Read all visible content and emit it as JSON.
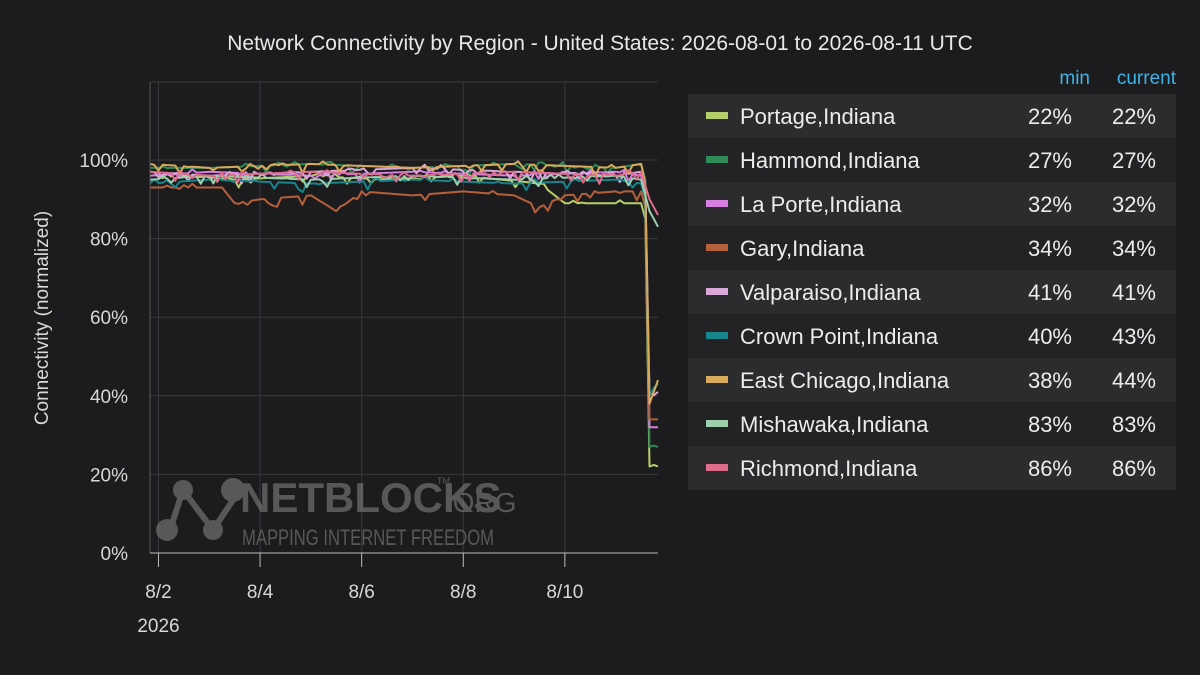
{
  "title": "Network Connectivity by Region - United States: 2026-08-01 to 2026-08-11 UTC",
  "legend": {
    "header_min": "min",
    "header_current": "current",
    "rows": [
      {
        "name": "Portage,Indiana",
        "min": "22%",
        "current": "22%",
        "color": "#b5cf6b"
      },
      {
        "name": "Hammond,Indiana",
        "min": "27%",
        "current": "27%",
        "color": "#2e8b57"
      },
      {
        "name": "La Porte,Indiana",
        "min": "32%",
        "current": "32%",
        "color": "#d67fe0"
      },
      {
        "name": "Gary,Indiana",
        "min": "34%",
        "current": "34%",
        "color": "#b5603a"
      },
      {
        "name": "Valparaiso,Indiana",
        "min": "41%",
        "current": "41%",
        "color": "#d9a7d9"
      },
      {
        "name": "Crown Point,Indiana",
        "min": "40%",
        "current": "43%",
        "color": "#16868c"
      },
      {
        "name": "East Chicago,Indiana",
        "min": "38%",
        "current": "44%",
        "color": "#d9aa5a"
      },
      {
        "name": "Mishawaka,Indiana",
        "min": "83%",
        "current": "83%",
        "color": "#9ecfae"
      },
      {
        "name": "Richmond,Indiana",
        "min": "86%",
        "current": "86%",
        "color": "#e06c8c"
      }
    ]
  },
  "watermark": {
    "brand": "NETBLOCKS",
    "suffix": ".ORG",
    "tm": "TM",
    "tagline": "MAPPING INTERNET FREEDOM"
  },
  "chart_data": {
    "type": "line",
    "title": "Network Connectivity by Region - United States: 2026-08-01 to 2026-08-11 UTC",
    "xlabel": "",
    "ylabel": "Connectivity (normalized)",
    "xlim": [
      "2026-08-01T20:00",
      "2026-08-11T20:00"
    ],
    "ylim": [
      0,
      100
    ],
    "x_ticks": [
      "8/2",
      "8/4",
      "8/6",
      "8/8",
      "8/10"
    ],
    "x_tick_sub": "2026",
    "y_ticks": [
      "0%",
      "20%",
      "40%",
      "60%",
      "80%",
      "100%"
    ],
    "y_tick_values": [
      0,
      20,
      40,
      60,
      80,
      100
    ],
    "grid": true,
    "legend_position": "right",
    "series": [
      {
        "name": "Portage,Indiana",
        "color": "#b5cf6b",
        "x": [
          "2026-08-01T20:00",
          "2026-08-02T12:00",
          "2026-08-03T12:00",
          "2026-08-05T00:00",
          "2026-08-06T12:00",
          "2026-08-08T00:00",
          "2026-08-09T12:00",
          "2026-08-10T00:00",
          "2026-08-10T12:00",
          "2026-08-11T06:00",
          "2026-08-11T12:00",
          "2026-08-11T14:00",
          "2026-08-11T16:00",
          "2026-08-11T20:00"
        ],
        "values": [
          97,
          96,
          95,
          96,
          95,
          96,
          94,
          89,
          89,
          89,
          89,
          85,
          22,
          22
        ]
      },
      {
        "name": "Hammond,Indiana",
        "color": "#2e8b57",
        "x": [
          "2026-08-01T20:00",
          "2026-08-03T00:00",
          "2026-08-05T00:00",
          "2026-08-07T00:00",
          "2026-08-09T00:00",
          "2026-08-11T00:00",
          "2026-08-11T12:00",
          "2026-08-11T14:00",
          "2026-08-11T16:00",
          "2026-08-11T20:00"
        ],
        "values": [
          98,
          98,
          99,
          98,
          99,
          98,
          99,
          95,
          27,
          27
        ]
      },
      {
        "name": "La Porte,Indiana",
        "color": "#d67fe0",
        "x": [
          "2026-08-01T20:00",
          "2026-08-03T00:00",
          "2026-08-05T00:00",
          "2026-08-07T00:00",
          "2026-08-09T00:00",
          "2026-08-11T00:00",
          "2026-08-11T12:00",
          "2026-08-11T14:00",
          "2026-08-11T16:00",
          "2026-08-11T20:00"
        ],
        "values": [
          96,
          97,
          96,
          97,
          96,
          97,
          96,
          92,
          32,
          32
        ]
      },
      {
        "name": "Gary,Indiana",
        "color": "#b5603a",
        "x": [
          "2026-08-01T20:00",
          "2026-08-03T06:00",
          "2026-08-03T12:00",
          "2026-08-04T00:00",
          "2026-08-05T00:00",
          "2026-08-05T12:00",
          "2026-08-06T00:00",
          "2026-08-07T00:00",
          "2026-08-08T00:00",
          "2026-08-09T00:00",
          "2026-08-09T12:00",
          "2026-08-10T00:00",
          "2026-08-11T00:00",
          "2026-08-11T12:00",
          "2026-08-11T14:00",
          "2026-08-11T16:00",
          "2026-08-11T20:00"
        ],
        "values": [
          93,
          93,
          89,
          90,
          91,
          87,
          92,
          91,
          92,
          91,
          88,
          91,
          92,
          92,
          88,
          34,
          34
        ]
      },
      {
        "name": "Valparaiso,Indiana",
        "color": "#d9a7d9",
        "x": [
          "2026-08-01T20:00",
          "2026-08-03T00:00",
          "2026-08-05T00:00",
          "2026-08-07T00:00",
          "2026-08-09T00:00",
          "2026-08-11T00:00",
          "2026-08-11T12:00",
          "2026-08-11T14:00",
          "2026-08-11T16:00",
          "2026-08-11T20:00"
        ],
        "values": [
          97,
          96,
          97,
          98,
          97,
          96,
          97,
          93,
          41,
          41
        ]
      },
      {
        "name": "Crown Point,Indiana",
        "color": "#16868c",
        "x": [
          "2026-08-01T20:00",
          "2026-08-03T00:00",
          "2026-08-05T00:00",
          "2026-08-07T00:00",
          "2026-08-09T00:00",
          "2026-08-11T00:00",
          "2026-08-11T12:00",
          "2026-08-11T14:00",
          "2026-08-11T16:00",
          "2026-08-11T18:00",
          "2026-08-11T20:00"
        ],
        "values": [
          94,
          95,
          94,
          95,
          94,
          95,
          94,
          90,
          40,
          42,
          43
        ]
      },
      {
        "name": "East Chicago,Indiana",
        "color": "#d9aa5a",
        "x": [
          "2026-08-01T20:00",
          "2026-08-03T00:00",
          "2026-08-05T00:00",
          "2026-08-07T00:00",
          "2026-08-09T00:00",
          "2026-08-11T00:00",
          "2026-08-11T12:00",
          "2026-08-11T14:00",
          "2026-08-11T16:00",
          "2026-08-11T18:00",
          "2026-08-11T20:00"
        ],
        "values": [
          99,
          98,
          99,
          98,
          99,
          98,
          99,
          94,
          38,
          41,
          44
        ]
      },
      {
        "name": "Mishawaka,Indiana",
        "color": "#9ecfae",
        "x": [
          "2026-08-01T20:00",
          "2026-08-03T00:00",
          "2026-08-05T00:00",
          "2026-08-07T00:00",
          "2026-08-09T00:00",
          "2026-08-11T00:00",
          "2026-08-11T12:00",
          "2026-08-11T16:00",
          "2026-08-11T20:00"
        ],
        "values": [
          95,
          96,
          95,
          96,
          95,
          96,
          95,
          87,
          83
        ]
      },
      {
        "name": "Richmond,Indiana",
        "color": "#e06c8c",
        "x": [
          "2026-08-01T20:00",
          "2026-08-03T00:00",
          "2026-08-05T00:00",
          "2026-08-07T00:00",
          "2026-08-09T00:00",
          "2026-08-11T00:00",
          "2026-08-11T12:00",
          "2026-08-11T16:00",
          "2026-08-11T20:00"
        ],
        "values": [
          97,
          96,
          97,
          96,
          97,
          96,
          97,
          90,
          86
        ]
      }
    ]
  }
}
